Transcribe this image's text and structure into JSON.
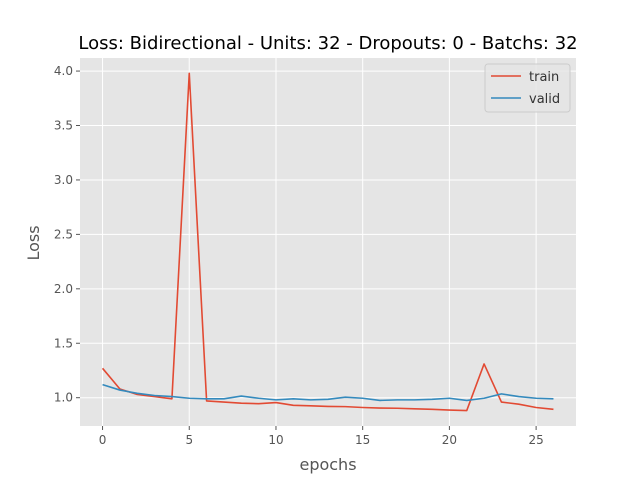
{
  "chart_data": {
    "type": "line",
    "title": "Loss: Bidirectional - Units: 32 - Dropouts: 0 - Batchs: 32",
    "xlabel": "epochs",
    "ylabel": "Loss",
    "xlim": [
      -1.3,
      27.3
    ],
    "ylim": [
      0.74,
      4.12
    ],
    "xticks": [
      0,
      5,
      10,
      15,
      20,
      25
    ],
    "yticks": [
      1.0,
      1.5,
      2.0,
      2.5,
      3.0,
      3.5,
      4.0
    ],
    "ytick_labels": [
      "1.0",
      "1.5",
      "2.0",
      "2.5",
      "3.0",
      "3.5",
      "4.0"
    ],
    "grid": true,
    "legend_position": "top-right",
    "x": [
      0,
      1,
      2,
      3,
      4,
      5,
      6,
      7,
      8,
      9,
      10,
      11,
      12,
      13,
      14,
      15,
      16,
      17,
      18,
      19,
      20,
      21,
      22,
      23,
      24,
      25,
      26
    ],
    "series": [
      {
        "name": "train",
        "color": "#E24A33",
        "values": [
          1.27,
          1.08,
          1.03,
          1.01,
          0.99,
          3.98,
          0.97,
          0.96,
          0.95,
          0.945,
          0.955,
          0.93,
          0.925,
          0.92,
          0.918,
          0.91,
          0.905,
          0.903,
          0.898,
          0.893,
          0.886,
          0.882,
          1.31,
          0.96,
          0.94,
          0.91,
          0.893
        ]
      },
      {
        "name": "valid",
        "color": "#348ABD",
        "values": [
          1.12,
          1.07,
          1.04,
          1.02,
          1.01,
          0.995,
          0.99,
          0.99,
          1.015,
          0.995,
          0.98,
          0.99,
          0.98,
          0.985,
          1.005,
          0.995,
          0.975,
          0.98,
          0.98,
          0.985,
          0.995,
          0.975,
          0.995,
          1.035,
          1.01,
          0.995,
          0.99
        ]
      }
    ]
  }
}
